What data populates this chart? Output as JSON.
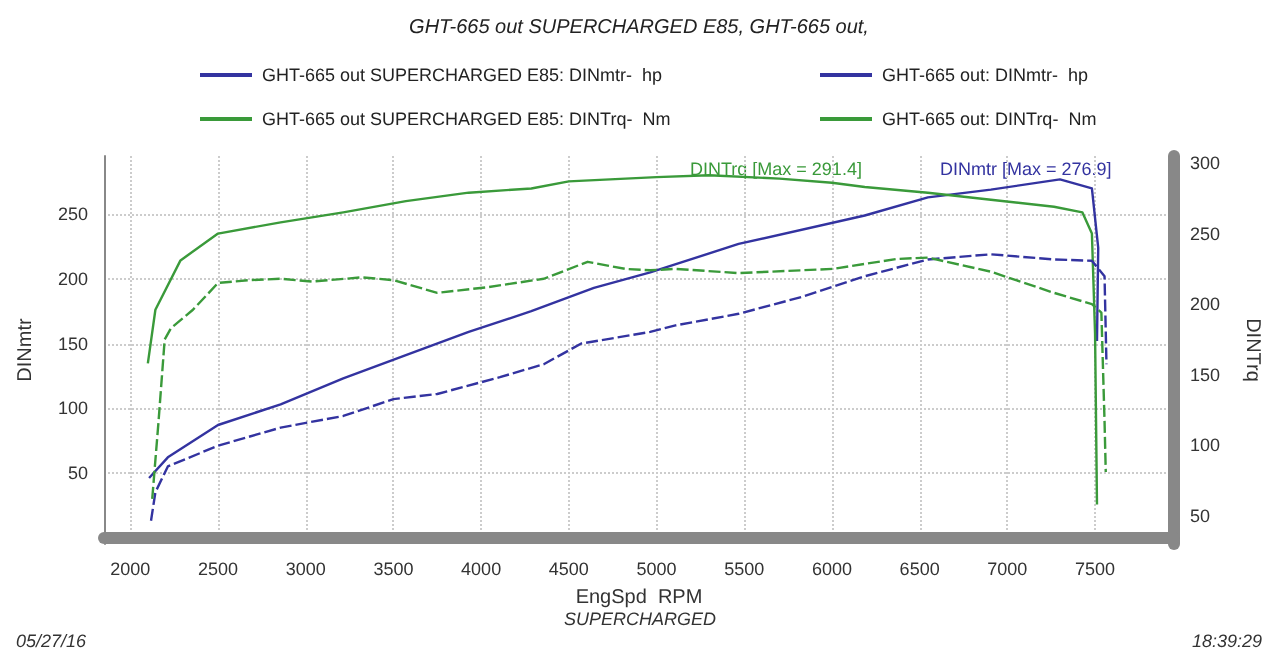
{
  "chart_data": {
    "type": "line",
    "title": "GHT-665 out SUPERCHARGED E85, GHT-665 out,",
    "xlabel": "EngSpd  RPM",
    "ylabel": "DINmtr",
    "y2label": "DINTrq",
    "annotations": [
      "DINTrq [Max = 291.4]",
      "DINmtr [Max = 276.9]",
      "SUPERCHARGED",
      "05/27/16",
      "18:39:29"
    ],
    "xlim": [
      1850,
      7950
    ],
    "xticks": [
      2000,
      2500,
      3000,
      3500,
      4000,
      4500,
      5000,
      5500,
      6000,
      6500,
      7000,
      7500
    ],
    "ylim": [
      -5,
      295
    ],
    "yticks": [
      50,
      100,
      150,
      200,
      250
    ],
    "y2lim": [
      30,
      305
    ],
    "y2ticks": [
      50,
      100,
      150,
      200,
      250,
      300
    ],
    "grid": true,
    "legend": "top",
    "marker": "none",
    "series": [
      {
        "name": "GHT-665 out SUPERCHARGED E85: DINmtr-  hp",
        "color": "#3333a0",
        "line_style": "solid",
        "x": [
          2107,
          2214,
          2500,
          2857,
          3214,
          3571,
          3929,
          4286,
          4643,
          4964,
          5468,
          6187,
          6547,
          6906,
          7300,
          7482,
          7518,
          7511
        ],
        "values": [
          46,
          62,
          87,
          103,
          123,
          141,
          159,
          175,
          193,
          205,
          227,
          249,
          263,
          269,
          276.9,
          270,
          224,
          152
        ]
      },
      {
        "name": "GHT-665 out SUPERCHARGED E85: DINTrq-  Nm",
        "color": "#3a9a3a",
        "line_style": "solid",
        "axis": "y2",
        "x": [
          2100,
          2143,
          2286,
          2500,
          2857,
          3214,
          3571,
          3929,
          4286,
          4500,
          5000,
          5300,
          5700,
          6000,
          6187,
          6547,
          6906,
          7266,
          7428,
          7482,
          7500,
          7511
        ],
        "values": [
          158,
          196,
          231,
          250,
          258,
          265,
          273,
          279,
          282,
          287,
          290,
          291.4,
          289,
          286,
          283,
          279,
          274,
          269,
          265,
          250,
          179,
          58
        ]
      },
      {
        "name": "GHT-665 out: DINmtr-  hp",
        "color": "#3333a0",
        "line_style": "dashed",
        "x": [
          2118,
          2143,
          2214,
          2500,
          2857,
          3214,
          3500,
          3750,
          4107,
          4357,
          4571,
          4964,
          5108,
          5468,
          5827,
          6187,
          6547,
          6906,
          7266,
          7482,
          7554,
          7565
        ],
        "values": [
          13,
          35,
          55,
          71,
          85,
          94,
          107,
          111,
          124,
          134,
          150,
          159,
          164,
          173,
          186,
          202,
          215,
          219,
          215,
          214,
          202,
          134
        ]
      },
      {
        "name": "GHT-665 out: DINTrq-  Nm",
        "color": "#3a9a3a",
        "line_style": "dashed",
        "axis": "y2",
        "x": [
          2125,
          2161,
          2196,
          2232,
          2357,
          2500,
          2679,
          2857,
          3036,
          3321,
          3500,
          3750,
          4036,
          4357,
          4607,
          4821,
          4964,
          5108,
          5468,
          6007,
          6367,
          6547,
          6906,
          7266,
          7482,
          7536,
          7554,
          7561
        ],
        "values": [
          62,
          117,
          175,
          183,
          196,
          215,
          217,
          218,
          216,
          219,
          217,
          208,
          212,
          218,
          230,
          225,
          224,
          225,
          222,
          225,
          232,
          233,
          223,
          208,
          200,
          194,
          117,
          81
        ]
      }
    ]
  }
}
